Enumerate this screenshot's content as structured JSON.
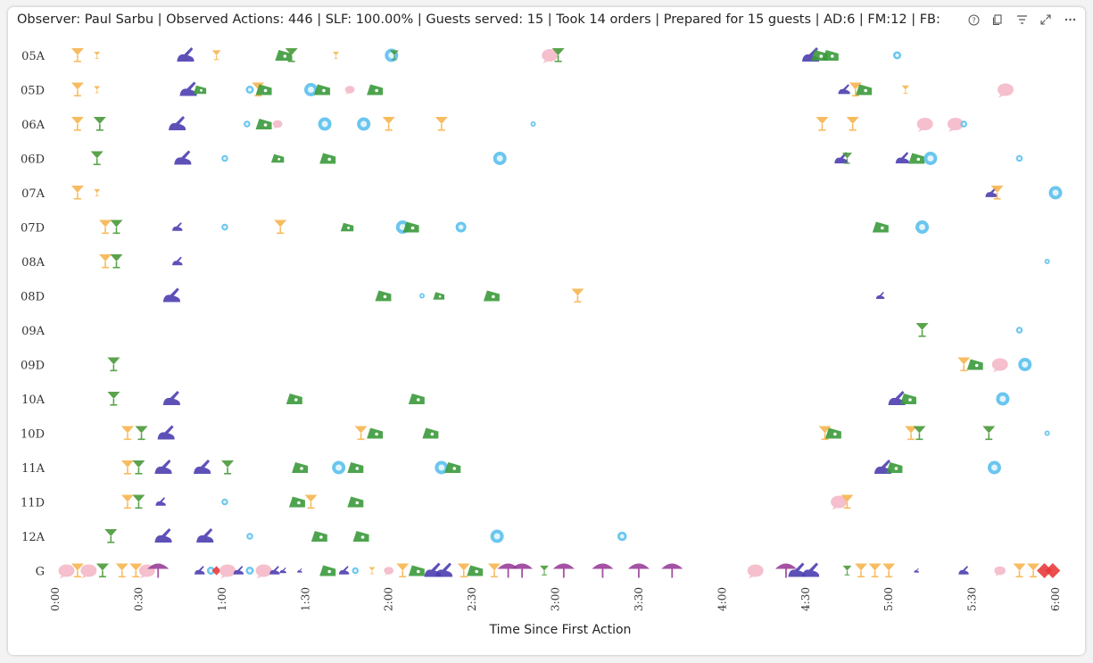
{
  "header": {
    "text": "Observer: Paul Sarbu | Observed Actions: 446 | SLF: 100.00% | Guests served: 15 | Took 14 orders | Prepared for 15 guests | AD:6 | FM:12 | FB:"
  },
  "toolbar": {
    "icons": [
      "help-icon",
      "copy-icon",
      "filter-icon",
      "expand-icon",
      "more-icon"
    ]
  },
  "colors": {
    "drink": "#f7b550",
    "cocktail": "#4a9a3a",
    "writing": "#4b3eb0",
    "food_green": "#3b9b3b",
    "blue": "#5ac0ee",
    "pink": "#f5b9c8",
    "purple": "#9b3f9b",
    "red": "#e83b3b"
  },
  "chart_data": {
    "type": "scatter",
    "xlabel": "Time Since First Action",
    "ylabel": "",
    "x_unit": "minutes",
    "xlim": [
      0,
      360
    ],
    "xticks": [
      {
        "value": 0,
        "label": "0:00"
      },
      {
        "value": 30,
        "label": "0:30"
      },
      {
        "value": 60,
        "label": "1:00"
      },
      {
        "value": 90,
        "label": "1:30"
      },
      {
        "value": 120,
        "label": "2:00"
      },
      {
        "value": 150,
        "label": "2:30"
      },
      {
        "value": 180,
        "label": "3:00"
      },
      {
        "value": 210,
        "label": "3:30"
      },
      {
        "value": 240,
        "label": "4:00"
      },
      {
        "value": 270,
        "label": "4:30"
      },
      {
        "value": 300,
        "label": "5:00"
      },
      {
        "value": 330,
        "label": "5:30"
      },
      {
        "value": 360,
        "label": "6:00"
      }
    ],
    "categories": [
      "05A",
      "05D",
      "06A",
      "06D",
      "07A",
      "07D",
      "08A",
      "08D",
      "09A",
      "09D",
      "10A",
      "10D",
      "11A",
      "11D",
      "12A",
      "G"
    ],
    "grid": false,
    "legend": "none",
    "points": [
      {
        "row": "05A",
        "x": 8,
        "kind": "drink"
      },
      {
        "row": "05A",
        "x": 15,
        "kind": "drink",
        "size": 0.5
      },
      {
        "row": "05A",
        "x": 47,
        "kind": "writing"
      },
      {
        "row": "05A",
        "x": 58,
        "kind": "drink",
        "size": 0.7
      },
      {
        "row": "05A",
        "x": 82,
        "kind": "food_green"
      },
      {
        "row": "05A",
        "x": 85,
        "kind": "cocktail"
      },
      {
        "row": "05A",
        "x": 101,
        "kind": "drink",
        "size": 0.5
      },
      {
        "row": "05A",
        "x": 121,
        "kind": "blue"
      },
      {
        "row": "05A",
        "x": 122,
        "kind": "cocktail",
        "size": 0.7
      },
      {
        "row": "05A",
        "x": 178,
        "kind": "pink"
      },
      {
        "row": "05A",
        "x": 181,
        "kind": "cocktail"
      },
      {
        "row": "05A",
        "x": 272,
        "kind": "writing"
      },
      {
        "row": "05A",
        "x": 275,
        "kind": "food_green"
      },
      {
        "row": "05A",
        "x": 279,
        "kind": "food_green"
      },
      {
        "row": "05A",
        "x": 303,
        "kind": "blue",
        "size": 0.6
      },
      {
        "row": "05D",
        "x": 8,
        "kind": "drink"
      },
      {
        "row": "05D",
        "x": 15,
        "kind": "drink",
        "size": 0.5
      },
      {
        "row": "05D",
        "x": 48,
        "kind": "writing"
      },
      {
        "row": "05D",
        "x": 52,
        "kind": "food_green",
        "size": 0.8
      },
      {
        "row": "05D",
        "x": 70,
        "kind": "blue",
        "size": 0.6
      },
      {
        "row": "05D",
        "x": 73,
        "kind": "drink"
      },
      {
        "row": "05D",
        "x": 75,
        "kind": "food_green"
      },
      {
        "row": "05D",
        "x": 92,
        "kind": "blue"
      },
      {
        "row": "05D",
        "x": 96,
        "kind": "food_green"
      },
      {
        "row": "05D",
        "x": 106,
        "kind": "pink",
        "size": 0.6
      },
      {
        "row": "05D",
        "x": 115,
        "kind": "food_green"
      },
      {
        "row": "05D",
        "x": 284,
        "kind": "writing",
        "size": 0.7
      },
      {
        "row": "05D",
        "x": 288,
        "kind": "drink"
      },
      {
        "row": "05D",
        "x": 291,
        "kind": "food_green"
      },
      {
        "row": "05D",
        "x": 306,
        "kind": "drink",
        "size": 0.6
      },
      {
        "row": "05D",
        "x": 342,
        "kind": "pink"
      },
      {
        "row": "06A",
        "x": 8,
        "kind": "drink"
      },
      {
        "row": "06A",
        "x": 16,
        "kind": "cocktail"
      },
      {
        "row": "06A",
        "x": 44,
        "kind": "writing"
      },
      {
        "row": "06A",
        "x": 69,
        "kind": "blue",
        "size": 0.5
      },
      {
        "row": "06A",
        "x": 75,
        "kind": "food_green"
      },
      {
        "row": "06A",
        "x": 80,
        "kind": "pink",
        "size": 0.6
      },
      {
        "row": "06A",
        "x": 97,
        "kind": "blue"
      },
      {
        "row": "06A",
        "x": 111,
        "kind": "blue"
      },
      {
        "row": "06A",
        "x": 120,
        "kind": "drink"
      },
      {
        "row": "06A",
        "x": 139,
        "kind": "drink"
      },
      {
        "row": "06A",
        "x": 172,
        "kind": "blue",
        "size": 0.4
      },
      {
        "row": "06A",
        "x": 276,
        "kind": "drink"
      },
      {
        "row": "06A",
        "x": 287,
        "kind": "drink"
      },
      {
        "row": "06A",
        "x": 313,
        "kind": "pink"
      },
      {
        "row": "06A",
        "x": 324,
        "kind": "pink"
      },
      {
        "row": "06A",
        "x": 327,
        "kind": "blue",
        "size": 0.5
      },
      {
        "row": "06D",
        "x": 15,
        "kind": "cocktail"
      },
      {
        "row": "06D",
        "x": 46,
        "kind": "writing"
      },
      {
        "row": "06D",
        "x": 61,
        "kind": "blue",
        "size": 0.5
      },
      {
        "row": "06D",
        "x": 80,
        "kind": "food_green",
        "size": 0.8
      },
      {
        "row": "06D",
        "x": 98,
        "kind": "food_green"
      },
      {
        "row": "06D",
        "x": 160,
        "kind": "blue"
      },
      {
        "row": "06D",
        "x": 283,
        "kind": "writing",
        "size": 0.8
      },
      {
        "row": "06D",
        "x": 285,
        "kind": "cocktail",
        "size": 0.8
      },
      {
        "row": "06D",
        "x": 305,
        "kind": "writing",
        "size": 0.8
      },
      {
        "row": "06D",
        "x": 310,
        "kind": "food_green"
      },
      {
        "row": "06D",
        "x": 315,
        "kind": "blue"
      },
      {
        "row": "06D",
        "x": 347,
        "kind": "blue",
        "size": 0.5
      },
      {
        "row": "07A",
        "x": 8,
        "kind": "drink"
      },
      {
        "row": "07A",
        "x": 15,
        "kind": "drink",
        "size": 0.5
      },
      {
        "row": "07A",
        "x": 337,
        "kind": "writing",
        "size": 0.7
      },
      {
        "row": "07A",
        "x": 339,
        "kind": "drink"
      },
      {
        "row": "07A",
        "x": 360,
        "kind": "blue"
      },
      {
        "row": "07D",
        "x": 18,
        "kind": "drink"
      },
      {
        "row": "07D",
        "x": 22,
        "kind": "cocktail"
      },
      {
        "row": "07D",
        "x": 44,
        "kind": "writing",
        "size": 0.6
      },
      {
        "row": "07D",
        "x": 61,
        "kind": "blue",
        "size": 0.5
      },
      {
        "row": "07D",
        "x": 81,
        "kind": "drink"
      },
      {
        "row": "07D",
        "x": 105,
        "kind": "food_green",
        "size": 0.8
      },
      {
        "row": "07D",
        "x": 125,
        "kind": "blue"
      },
      {
        "row": "07D",
        "x": 128,
        "kind": "food_green"
      },
      {
        "row": "07D",
        "x": 146,
        "kind": "blue",
        "size": 0.8
      },
      {
        "row": "07D",
        "x": 297,
        "kind": "food_green"
      },
      {
        "row": "07D",
        "x": 312,
        "kind": "blue"
      },
      {
        "row": "08A",
        "x": 18,
        "kind": "drink"
      },
      {
        "row": "08A",
        "x": 22,
        "kind": "cocktail"
      },
      {
        "row": "08A",
        "x": 44,
        "kind": "writing",
        "size": 0.6
      },
      {
        "row": "08A",
        "x": 357,
        "kind": "blue",
        "size": 0.4
      },
      {
        "row": "08D",
        "x": 42,
        "kind": "writing"
      },
      {
        "row": "08D",
        "x": 118,
        "kind": "food_green"
      },
      {
        "row": "08D",
        "x": 132,
        "kind": "blue",
        "size": 0.4
      },
      {
        "row": "08D",
        "x": 138,
        "kind": "food_green",
        "size": 0.7
      },
      {
        "row": "08D",
        "x": 157,
        "kind": "food_green"
      },
      {
        "row": "08D",
        "x": 188,
        "kind": "drink"
      },
      {
        "row": "08D",
        "x": 297,
        "kind": "writing",
        "size": 0.5
      },
      {
        "row": "09A",
        "x": 312,
        "kind": "cocktail"
      },
      {
        "row": "09A",
        "x": 347,
        "kind": "blue",
        "size": 0.5
      },
      {
        "row": "09D",
        "x": 21,
        "kind": "cocktail"
      },
      {
        "row": "09D",
        "x": 327,
        "kind": "drink"
      },
      {
        "row": "09D",
        "x": 331,
        "kind": "food_green"
      },
      {
        "row": "09D",
        "x": 340,
        "kind": "pink"
      },
      {
        "row": "09D",
        "x": 349,
        "kind": "blue"
      },
      {
        "row": "10A",
        "x": 21,
        "kind": "cocktail"
      },
      {
        "row": "10A",
        "x": 42,
        "kind": "writing"
      },
      {
        "row": "10A",
        "x": 86,
        "kind": "food_green"
      },
      {
        "row": "10A",
        "x": 130,
        "kind": "food_green"
      },
      {
        "row": "10A",
        "x": 303,
        "kind": "writing"
      },
      {
        "row": "10A",
        "x": 307,
        "kind": "food_green"
      },
      {
        "row": "10A",
        "x": 341,
        "kind": "blue"
      },
      {
        "row": "10D",
        "x": 26,
        "kind": "drink"
      },
      {
        "row": "10D",
        "x": 31,
        "kind": "cocktail"
      },
      {
        "row": "10D",
        "x": 40,
        "kind": "writing"
      },
      {
        "row": "10D",
        "x": 110,
        "kind": "drink"
      },
      {
        "row": "10D",
        "x": 115,
        "kind": "food_green"
      },
      {
        "row": "10D",
        "x": 135,
        "kind": "food_green"
      },
      {
        "row": "10D",
        "x": 277,
        "kind": "drink"
      },
      {
        "row": "10D",
        "x": 280,
        "kind": "food_green"
      },
      {
        "row": "10D",
        "x": 308,
        "kind": "drink"
      },
      {
        "row": "10D",
        "x": 311,
        "kind": "cocktail"
      },
      {
        "row": "10D",
        "x": 336,
        "kind": "cocktail"
      },
      {
        "row": "10D",
        "x": 357,
        "kind": "blue",
        "size": 0.4
      },
      {
        "row": "11A",
        "x": 26,
        "kind": "drink"
      },
      {
        "row": "11A",
        "x": 30,
        "kind": "cocktail"
      },
      {
        "row": "11A",
        "x": 39,
        "kind": "writing"
      },
      {
        "row": "11A",
        "x": 53,
        "kind": "writing"
      },
      {
        "row": "11A",
        "x": 62,
        "kind": "cocktail"
      },
      {
        "row": "11A",
        "x": 88,
        "kind": "food_green"
      },
      {
        "row": "11A",
        "x": 102,
        "kind": "blue"
      },
      {
        "row": "11A",
        "x": 108,
        "kind": "food_green"
      },
      {
        "row": "11A",
        "x": 139,
        "kind": "blue"
      },
      {
        "row": "11A",
        "x": 143,
        "kind": "food_green"
      },
      {
        "row": "11A",
        "x": 298,
        "kind": "writing"
      },
      {
        "row": "11A",
        "x": 302,
        "kind": "food_green"
      },
      {
        "row": "11A",
        "x": 338,
        "kind": "blue"
      },
      {
        "row": "11D",
        "x": 26,
        "kind": "drink"
      },
      {
        "row": "11D",
        "x": 30,
        "kind": "cocktail"
      },
      {
        "row": "11D",
        "x": 38,
        "kind": "writing",
        "size": 0.6
      },
      {
        "row": "11D",
        "x": 61,
        "kind": "blue",
        "size": 0.5
      },
      {
        "row": "11D",
        "x": 87,
        "kind": "food_green"
      },
      {
        "row": "11D",
        "x": 92,
        "kind": "drink"
      },
      {
        "row": "11D",
        "x": 108,
        "kind": "food_green"
      },
      {
        "row": "11D",
        "x": 282,
        "kind": "pink"
      },
      {
        "row": "11D",
        "x": 285,
        "kind": "drink"
      },
      {
        "row": "12A",
        "x": 20,
        "kind": "cocktail"
      },
      {
        "row": "12A",
        "x": 39,
        "kind": "writing"
      },
      {
        "row": "12A",
        "x": 54,
        "kind": "writing"
      },
      {
        "row": "12A",
        "x": 70,
        "kind": "blue",
        "size": 0.5
      },
      {
        "row": "12A",
        "x": 95,
        "kind": "food_green"
      },
      {
        "row": "12A",
        "x": 110,
        "kind": "food_green"
      },
      {
        "row": "12A",
        "x": 159,
        "kind": "blue"
      },
      {
        "row": "12A",
        "x": 204,
        "kind": "blue",
        "size": 0.7
      },
      {
        "row": "G",
        "x": 4,
        "kind": "pink"
      },
      {
        "row": "G",
        "x": 8,
        "kind": "drink"
      },
      {
        "row": "G",
        "x": 12,
        "kind": "pink"
      },
      {
        "row": "G",
        "x": 17,
        "kind": "cocktail"
      },
      {
        "row": "G",
        "x": 24,
        "kind": "drink"
      },
      {
        "row": "G",
        "x": 29,
        "kind": "drink"
      },
      {
        "row": "G",
        "x": 33,
        "kind": "pink"
      },
      {
        "row": "G",
        "x": 37,
        "kind": "purple"
      },
      {
        "row": "G",
        "x": 52,
        "kind": "writing",
        "size": 0.6
      },
      {
        "row": "G",
        "x": 56,
        "kind": "blue",
        "size": 0.6
      },
      {
        "row": "G",
        "x": 58,
        "kind": "red",
        "size": 0.6
      },
      {
        "row": "G",
        "x": 62,
        "kind": "pink"
      },
      {
        "row": "G",
        "x": 66,
        "kind": "writing",
        "size": 0.6
      },
      {
        "row": "G",
        "x": 70,
        "kind": "blue",
        "size": 0.6
      },
      {
        "row": "G",
        "x": 75,
        "kind": "pink"
      },
      {
        "row": "G",
        "x": 79,
        "kind": "writing",
        "size": 0.6
      },
      {
        "row": "G",
        "x": 82,
        "kind": "writing",
        "size": 0.4
      },
      {
        "row": "G",
        "x": 88,
        "kind": "writing",
        "size": 0.3
      },
      {
        "row": "G",
        "x": 98,
        "kind": "food_green"
      },
      {
        "row": "G",
        "x": 104,
        "kind": "writing",
        "size": 0.6
      },
      {
        "row": "G",
        "x": 108,
        "kind": "blue",
        "size": 0.5
      },
      {
        "row": "G",
        "x": 114,
        "kind": "drink",
        "size": 0.5
      },
      {
        "row": "G",
        "x": 120,
        "kind": "pink",
        "size": 0.6
      },
      {
        "row": "G",
        "x": 125,
        "kind": "drink"
      },
      {
        "row": "G",
        "x": 130,
        "kind": "food_green"
      },
      {
        "row": "G",
        "x": 136,
        "kind": "writing"
      },
      {
        "row": "G",
        "x": 140,
        "kind": "writing"
      },
      {
        "row": "G",
        "x": 147,
        "kind": "drink"
      },
      {
        "row": "G",
        "x": 151,
        "kind": "food_green"
      },
      {
        "row": "G",
        "x": 158,
        "kind": "drink"
      },
      {
        "row": "G",
        "x": 163,
        "kind": "purple"
      },
      {
        "row": "G",
        "x": 168,
        "kind": "purple"
      },
      {
        "row": "G",
        "x": 176,
        "kind": "cocktail",
        "size": 0.7
      },
      {
        "row": "G",
        "x": 183,
        "kind": "purple"
      },
      {
        "row": "G",
        "x": 197,
        "kind": "purple"
      },
      {
        "row": "G",
        "x": 210,
        "kind": "purple"
      },
      {
        "row": "G",
        "x": 222,
        "kind": "purple"
      },
      {
        "row": "G",
        "x": 252,
        "kind": "pink"
      },
      {
        "row": "G",
        "x": 263,
        "kind": "purple"
      },
      {
        "row": "G",
        "x": 267,
        "kind": "writing"
      },
      {
        "row": "G",
        "x": 272,
        "kind": "writing"
      },
      {
        "row": "G",
        "x": 285,
        "kind": "cocktail",
        "size": 0.7
      },
      {
        "row": "G",
        "x": 290,
        "kind": "drink"
      },
      {
        "row": "G",
        "x": 295,
        "kind": "drink"
      },
      {
        "row": "G",
        "x": 300,
        "kind": "drink"
      },
      {
        "row": "G",
        "x": 310,
        "kind": "writing",
        "size": 0.3
      },
      {
        "row": "G",
        "x": 327,
        "kind": "writing",
        "size": 0.6
      },
      {
        "row": "G",
        "x": 340,
        "kind": "pink",
        "size": 0.7
      },
      {
        "row": "G",
        "x": 347,
        "kind": "drink"
      },
      {
        "row": "G",
        "x": 352,
        "kind": "drink"
      },
      {
        "row": "G",
        "x": 356,
        "kind": "red"
      },
      {
        "row": "G",
        "x": 359,
        "kind": "red"
      }
    ]
  }
}
